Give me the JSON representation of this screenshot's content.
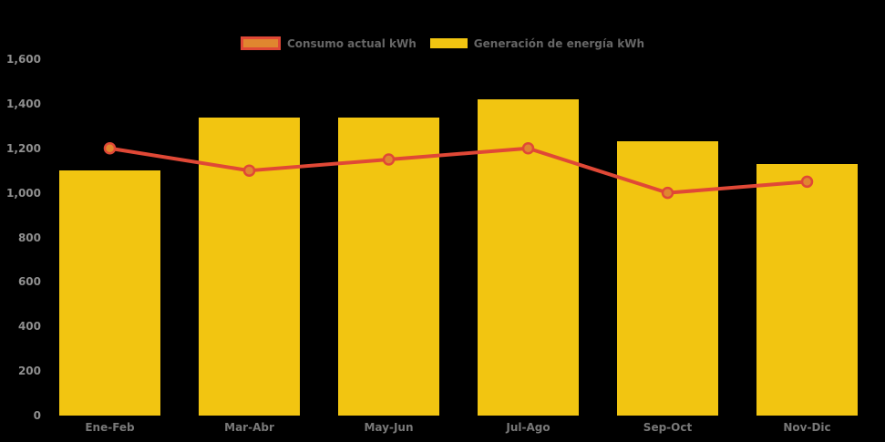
{
  "colors": {
    "background": "#000000",
    "y_tick_text": "#8F8F8F",
    "x_tick_text": "#787878",
    "legend_text": "#666666"
  },
  "chart_data": {
    "type": "bar",
    "subtype": "combo-bar-line",
    "categories": [
      "Ene-Feb",
      "Mar-Abr",
      "May-Jun",
      "Jul-Ago",
      "Sep-Oct",
      "Nov-Dic"
    ],
    "series": [
      {
        "name": "Consumo actual kWh",
        "type": "line",
        "values": [
          1200,
          1100,
          1150,
          1200,
          1000,
          1050
        ],
        "color": "#E04836",
        "marker_fill": "#E0862F"
      },
      {
        "name": "Generación de energía kWh",
        "type": "bar",
        "values": [
          1100,
          1340,
          1340,
          1420,
          1230,
          1130
        ],
        "color": "#F2C511"
      }
    ],
    "ylim": [
      0,
      1600
    ],
    "ytick_step": 200,
    "ytick_labels": [
      "0",
      "200",
      "400",
      "600",
      "800",
      "1,000",
      "1,200",
      "1,400",
      "1,600"
    ],
    "grid": false,
    "legend_position": "top"
  }
}
